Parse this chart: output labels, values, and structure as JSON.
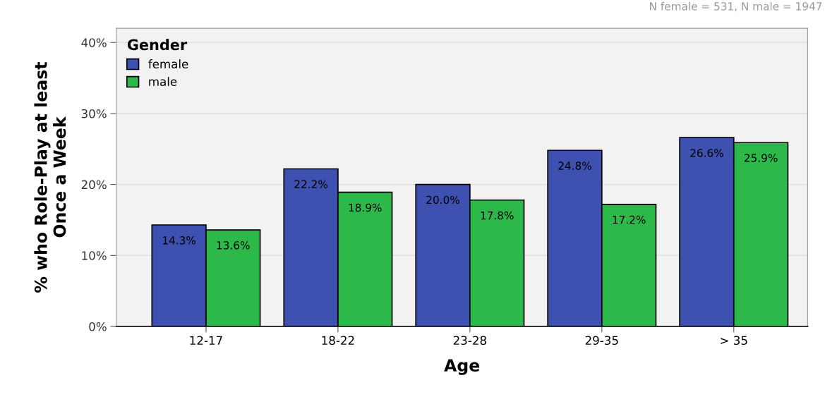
{
  "chart_data": {
    "type": "bar",
    "xlabel": "Age",
    "ylabel": "% who Role-Play at least\nOnce a Week",
    "legend_title": "Gender",
    "categories": [
      "12-17",
      "18-22",
      "23-28",
      "29-35",
      "> 35"
    ],
    "series": [
      {
        "name": "female",
        "color": "#3f51b0",
        "values": [
          14.3,
          22.2,
          20.0,
          24.8,
          26.6
        ],
        "value_labels": [
          "14.3%",
          "22.2%",
          "20.0%",
          "24.8%",
          "26.6%"
        ]
      },
      {
        "name": "male",
        "color": "#2db84a",
        "values": [
          13.6,
          18.9,
          17.8,
          17.2,
          25.9
        ],
        "value_labels": [
          "13.6%",
          "18.9%",
          "17.8%",
          "17.2%",
          "25.9%"
        ]
      }
    ],
    "ylim": [
      0,
      42
    ],
    "yticks": [
      {
        "value": 0,
        "label": "0%"
      },
      {
        "value": 10,
        "label": "10%"
      },
      {
        "value": 20,
        "label": "20%"
      },
      {
        "value": 30,
        "label": "30%"
      },
      {
        "value": 40,
        "label": "40%"
      }
    ],
    "grid": "y",
    "legend": "top left",
    "annotations": [
      "N female = 531, N male = 1947"
    ]
  }
}
